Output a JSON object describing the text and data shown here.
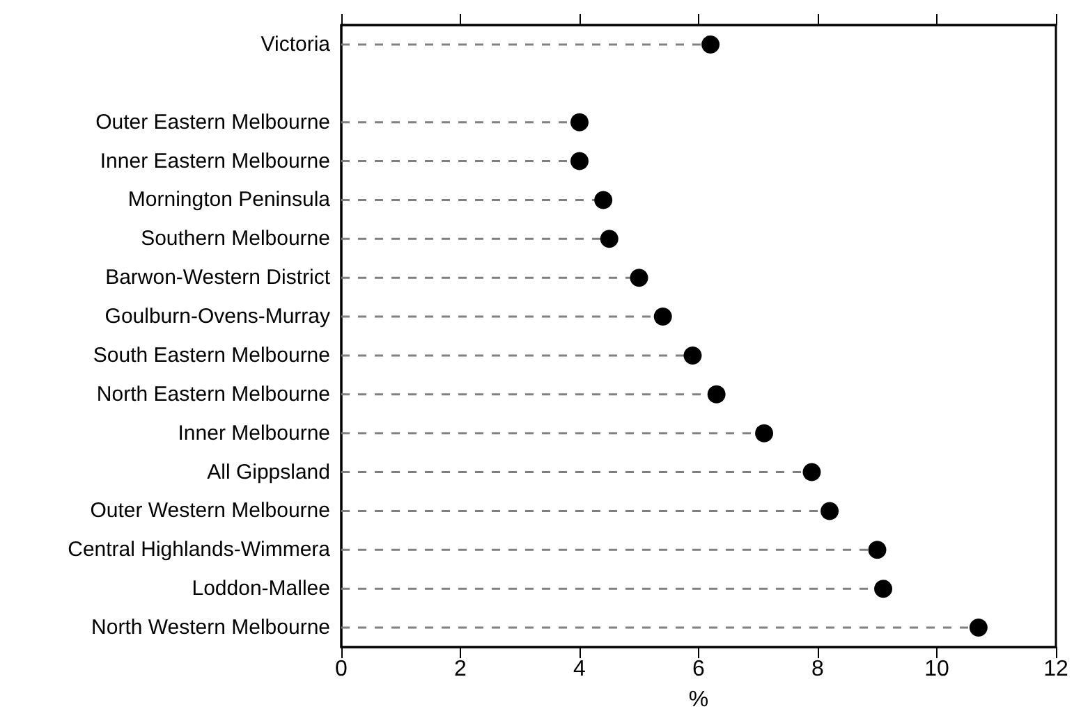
{
  "chart_data": {
    "type": "lollipop",
    "orientation": "horizontal",
    "xlabel": "%",
    "categories": [
      "Victoria",
      null,
      "Outer Eastern Melbourne",
      "Inner Eastern Melbourne",
      "Mornington Peninsula",
      "Southern Melbourne",
      "Barwon-Western District",
      "Goulburn-Ovens-Murray",
      "South Eastern Melbourne",
      "North Eastern Melbourne",
      "Inner Melbourne",
      "All Gippsland",
      "Outer Western Melbourne",
      "Central Highlands-Wimmera",
      "Loddon-Mallee",
      "North Western Melbourne"
    ],
    "values": [
      6.2,
      null,
      4.0,
      4.0,
      4.4,
      4.5,
      5.0,
      5.4,
      5.9,
      6.3,
      7.1,
      7.9,
      8.2,
      9.0,
      9.1,
      10.7
    ],
    "color": "#000000",
    "marker": "circle",
    "line_style": "dashed",
    "grid": false,
    "xlim": [
      0,
      12
    ],
    "xticks": [
      0,
      2,
      4,
      6,
      8,
      10,
      12
    ]
  }
}
